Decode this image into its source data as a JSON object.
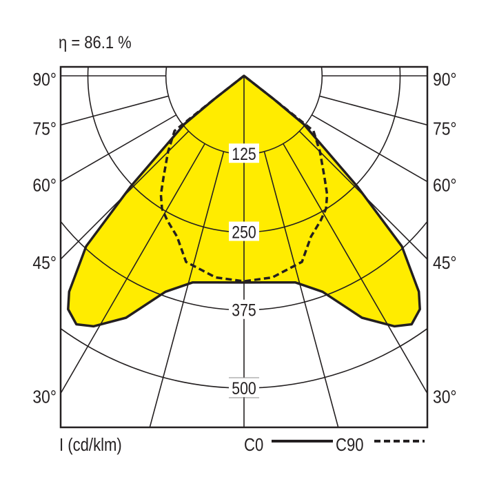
{
  "chart_data": {
    "type": "polar",
    "title": "η = 86.1 %",
    "unit_label": "I (cd/klm)",
    "radial_ticks": [
      "125",
      "250",
      "375",
      "500"
    ],
    "radial_values": [
      125,
      250,
      375,
      500
    ],
    "angle_labels": [
      "90°",
      "75°",
      "60°",
      "45°",
      "30°"
    ],
    "angle_values": [
      90,
      75,
      60,
      45,
      30
    ],
    "grid_angles": [
      0,
      15,
      30,
      45,
      60,
      75,
      90
    ],
    "series": [
      {
        "name": "C0",
        "style": "solid",
        "filled": true,
        "fill": "#ffec00",
        "points": [
          [
            0,
            331
          ],
          [
            8,
            334
          ],
          [
            14,
            341
          ],
          [
            20,
            368
          ],
          [
            26,
            431
          ],
          [
            31,
            468
          ],
          [
            34,
            480
          ],
          [
            37,
            468
          ],
          [
            39,
            445
          ],
          [
            42.8,
            372
          ],
          [
            45.7,
            253
          ],
          [
            51,
            123
          ],
          [
            52,
            60
          ],
          [
            90,
            0
          ]
        ]
      },
      {
        "name": "C90",
        "style": "dashed",
        "filled": false,
        "points": [
          [
            0,
            329
          ],
          [
            8,
            326
          ],
          [
            17.3,
            312
          ],
          [
            22.6,
            279
          ],
          [
            28,
            262
          ],
          [
            31.7,
            250
          ],
          [
            35,
            232
          ],
          [
            38.5,
            207
          ],
          [
            45,
            172
          ],
          [
            51.6,
            142
          ],
          [
            52,
            60
          ],
          [
            90,
            0
          ]
        ]
      }
    ],
    "legend": [
      {
        "label": "C0",
        "style": "solid"
      },
      {
        "label": "C90",
        "style": "dashed"
      }
    ],
    "legend_placement": "bottom-right"
  }
}
